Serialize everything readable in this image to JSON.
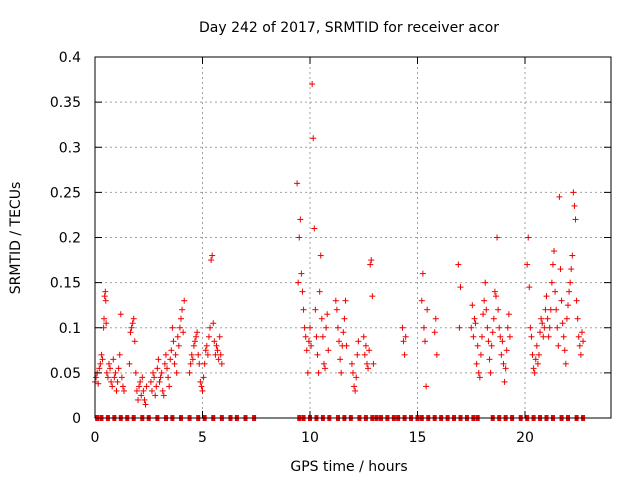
{
  "chart_data": {
    "type": "scatter",
    "title": "Day 242 of 2017, SRMTID for receiver acor",
    "xlabel": "GPS time / hours",
    "ylabel": "SRMTID / TECUs",
    "xlim": [
      0,
      24
    ],
    "ylim": [
      0,
      0.4
    ],
    "xticks": [
      0,
      5,
      10,
      15,
      20
    ],
    "yticks": [
      0,
      0.05,
      0.1,
      0.15,
      0.2,
      0.25,
      0.3,
      0.35,
      0.4
    ],
    "xtick_labels": [
      "0",
      "5",
      "10",
      "15",
      "20"
    ],
    "ytick_labels": [
      "0",
      "0.05",
      "0.1",
      "0.15",
      "0.2",
      "0.25",
      "0.3",
      "0.35",
      "0.4"
    ],
    "grid": true,
    "marker": "+",
    "color": "#ee0000",
    "series": [
      {
        "name": "SRMTID",
        "points": [
          [
            0.0,
            0.04
          ],
          [
            0.05,
            0.045
          ],
          [
            0.1,
            0.05
          ],
          [
            0.15,
            0.038
          ],
          [
            0.2,
            0.055
          ],
          [
            0.25,
            0.06
          ],
          [
            0.3,
            0.07
          ],
          [
            0.35,
            0.065
          ],
          [
            0.4,
            0.1
          ],
          [
            0.42,
            0.11
          ],
          [
            0.45,
            0.135
          ],
          [
            0.48,
            0.14
          ],
          [
            0.5,
            0.13
          ],
          [
            0.52,
            0.105
          ],
          [
            0.55,
            0.05
          ],
          [
            0.6,
            0.045
          ],
          [
            0.65,
            0.06
          ],
          [
            0.7,
            0.055
          ],
          [
            0.75,
            0.04
          ],
          [
            0.8,
            0.035
          ],
          [
            0.85,
            0.065
          ],
          [
            0.9,
            0.045
          ],
          [
            0.95,
            0.05
          ],
          [
            1.0,
            0.03
          ],
          [
            1.05,
            0.04
          ],
          [
            1.1,
            0.055
          ],
          [
            1.15,
            0.07
          ],
          [
            1.2,
            0.115
          ],
          [
            1.25,
            0.045
          ],
          [
            1.3,
            0.035
          ],
          [
            1.35,
            0.03
          ],
          [
            1.6,
            0.06
          ],
          [
            1.65,
            0.095
          ],
          [
            1.7,
            0.1
          ],
          [
            1.75,
            0.105
          ],
          [
            1.8,
            0.11
          ],
          [
            1.85,
            0.085
          ],
          [
            1.9,
            0.05
          ],
          [
            1.95,
            0.03
          ],
          [
            2.0,
            0.02
          ],
          [
            2.05,
            0.035
          ],
          [
            2.1,
            0.04
          ],
          [
            2.15,
            0.025
          ],
          [
            2.2,
            0.045
          ],
          [
            2.25,
            0.03
          ],
          [
            2.3,
            0.02
          ],
          [
            2.35,
            0.015
          ],
          [
            2.4,
            0.035
          ],
          [
            2.6,
            0.04
          ],
          [
            2.65,
            0.03
          ],
          [
            2.7,
            0.05
          ],
          [
            2.75,
            0.045
          ],
          [
            2.8,
            0.025
          ],
          [
            2.85,
            0.035
          ],
          [
            2.9,
            0.055
          ],
          [
            2.95,
            0.065
          ],
          [
            3.0,
            0.04
          ],
          [
            3.05,
            0.045
          ],
          [
            3.1,
            0.05
          ],
          [
            3.15,
            0.03
          ],
          [
            3.2,
            0.025
          ],
          [
            3.25,
            0.06
          ],
          [
            3.3,
            0.07
          ],
          [
            3.35,
            0.055
          ],
          [
            3.4,
            0.045
          ],
          [
            3.45,
            0.035
          ],
          [
            3.5,
            0.065
          ],
          [
            3.55,
            0.075
          ],
          [
            3.6,
            0.1
          ],
          [
            3.65,
            0.085
          ],
          [
            3.7,
            0.06
          ],
          [
            3.75,
            0.07
          ],
          [
            3.8,
            0.05
          ],
          [
            3.85,
            0.09
          ],
          [
            3.9,
            0.08
          ],
          [
            3.95,
            0.1
          ],
          [
            4.0,
            0.11
          ],
          [
            4.05,
            0.12
          ],
          [
            4.1,
            0.095
          ],
          [
            4.15,
            0.13
          ],
          [
            4.4,
            0.05
          ],
          [
            4.45,
            0.06
          ],
          [
            4.5,
            0.07
          ],
          [
            4.55,
            0.065
          ],
          [
            4.6,
            0.08
          ],
          [
            4.65,
            0.085
          ],
          [
            4.7,
            0.09
          ],
          [
            4.75,
            0.095
          ],
          [
            4.8,
            0.07
          ],
          [
            4.85,
            0.06
          ],
          [
            4.9,
            0.04
          ],
          [
            4.95,
            0.035
          ],
          [
            5.0,
            0.03
          ],
          [
            5.05,
            0.045
          ],
          [
            5.1,
            0.06
          ],
          [
            5.15,
            0.075
          ],
          [
            5.2,
            0.08
          ],
          [
            5.25,
            0.07
          ],
          [
            5.3,
            0.09
          ],
          [
            5.35,
            0.1
          ],
          [
            5.4,
            0.175
          ],
          [
            5.45,
            0.18
          ],
          [
            5.5,
            0.105
          ],
          [
            5.55,
            0.085
          ],
          [
            5.6,
            0.07
          ],
          [
            5.65,
            0.08
          ],
          [
            5.7,
            0.075
          ],
          [
            5.75,
            0.065
          ],
          [
            5.8,
            0.09
          ],
          [
            5.85,
            0.07
          ],
          [
            5.9,
            0.06
          ],
          [
            9.4,
            0.26
          ],
          [
            9.45,
            0.15
          ],
          [
            9.5,
            0.2
          ],
          [
            9.55,
            0.22
          ],
          [
            9.6,
            0.16
          ],
          [
            9.65,
            0.14
          ],
          [
            9.7,
            0.12
          ],
          [
            9.75,
            0.1
          ],
          [
            9.8,
            0.09
          ],
          [
            9.85,
            0.075
          ],
          [
            9.9,
            0.05
          ],
          [
            9.95,
            0.085
          ],
          [
            10.0,
            0.1
          ],
          [
            10.05,
            0.08
          ],
          [
            10.1,
            0.37
          ],
          [
            10.15,
            0.31
          ],
          [
            10.2,
            0.21
          ],
          [
            10.25,
            0.12
          ],
          [
            10.3,
            0.09
          ],
          [
            10.35,
            0.07
          ],
          [
            10.4,
            0.05
          ],
          [
            10.45,
            0.14
          ],
          [
            10.5,
            0.18
          ],
          [
            10.55,
            0.11
          ],
          [
            10.6,
            0.09
          ],
          [
            10.65,
            0.06
          ],
          [
            10.7,
            0.055
          ],
          [
            10.75,
            0.1
          ],
          [
            10.8,
            0.115
          ],
          [
            10.85,
            0.075
          ],
          [
            11.2,
            0.13
          ],
          [
            11.25,
            0.12
          ],
          [
            11.3,
            0.1
          ],
          [
            11.35,
            0.085
          ],
          [
            11.4,
            0.065
          ],
          [
            11.45,
            0.05
          ],
          [
            11.5,
            0.08
          ],
          [
            11.55,
            0.095
          ],
          [
            11.6,
            0.11
          ],
          [
            11.65,
            0.13
          ],
          [
            11.7,
            0.08
          ],
          [
            11.95,
            0.06
          ],
          [
            12.0,
            0.05
          ],
          [
            12.05,
            0.035
          ],
          [
            12.1,
            0.03
          ],
          [
            12.15,
            0.045
          ],
          [
            12.2,
            0.07
          ],
          [
            12.25,
            0.085
          ],
          [
            12.5,
            0.09
          ],
          [
            12.55,
            0.07
          ],
          [
            12.6,
            0.08
          ],
          [
            12.65,
            0.06
          ],
          [
            12.7,
            0.055
          ],
          [
            12.75,
            0.075
          ],
          [
            12.8,
            0.17
          ],
          [
            12.85,
            0.175
          ],
          [
            12.9,
            0.135
          ],
          [
            12.95,
            0.06
          ],
          [
            14.3,
            0.1
          ],
          [
            14.35,
            0.085
          ],
          [
            14.4,
            0.07
          ],
          [
            14.45,
            0.09
          ],
          [
            15.2,
            0.13
          ],
          [
            15.25,
            0.16
          ],
          [
            15.3,
            0.1
          ],
          [
            15.35,
            0.085
          ],
          [
            15.4,
            0.035
          ],
          [
            15.45,
            0.12
          ],
          [
            15.8,
            0.095
          ],
          [
            15.85,
            0.11
          ],
          [
            15.9,
            0.07
          ],
          [
            16.9,
            0.17
          ],
          [
            16.95,
            0.1
          ],
          [
            17.0,
            0.145
          ],
          [
            17.5,
            0.1
          ],
          [
            17.55,
            0.125
          ],
          [
            17.6,
            0.09
          ],
          [
            17.65,
            0.11
          ],
          [
            17.7,
            0.105
          ],
          [
            17.75,
            0.06
          ],
          [
            17.8,
            0.08
          ],
          [
            17.85,
            0.05
          ],
          [
            17.9,
            0.045
          ],
          [
            17.95,
            0.07
          ],
          [
            18.0,
            0.09
          ],
          [
            18.05,
            0.115
          ],
          [
            18.1,
            0.13
          ],
          [
            18.15,
            0.15
          ],
          [
            18.2,
            0.12
          ],
          [
            18.25,
            0.1
          ],
          [
            18.3,
            0.085
          ],
          [
            18.35,
            0.065
          ],
          [
            18.4,
            0.05
          ],
          [
            18.45,
            0.08
          ],
          [
            18.5,
            0.095
          ],
          [
            18.55,
            0.11
          ],
          [
            18.6,
            0.14
          ],
          [
            18.65,
            0.135
          ],
          [
            18.7,
            0.2
          ],
          [
            18.75,
            0.12
          ],
          [
            18.8,
            0.1
          ],
          [
            18.85,
            0.09
          ],
          [
            18.9,
            0.07
          ],
          [
            18.95,
            0.085
          ],
          [
            19.0,
            0.06
          ],
          [
            19.05,
            0.04
          ],
          [
            19.1,
            0.055
          ],
          [
            19.15,
            0.075
          ],
          [
            19.2,
            0.1
          ],
          [
            19.25,
            0.115
          ],
          [
            19.3,
            0.09
          ],
          [
            20.1,
            0.17
          ],
          [
            20.15,
            0.2
          ],
          [
            20.2,
            0.145
          ],
          [
            20.25,
            0.1
          ],
          [
            20.3,
            0.09
          ],
          [
            20.35,
            0.07
          ],
          [
            20.4,
            0.055
          ],
          [
            20.45,
            0.05
          ],
          [
            20.5,
            0.065
          ],
          [
            20.55,
            0.08
          ],
          [
            20.6,
            0.06
          ],
          [
            20.65,
            0.07
          ],
          [
            20.7,
            0.095
          ],
          [
            20.75,
            0.11
          ],
          [
            20.8,
            0.105
          ],
          [
            20.85,
            0.09
          ],
          [
            20.9,
            0.1
          ],
          [
            20.95,
            0.12
          ],
          [
            21.0,
            0.135
          ],
          [
            21.05,
            0.11
          ],
          [
            21.1,
            0.09
          ],
          [
            21.15,
            0.1
          ],
          [
            21.2,
            0.12
          ],
          [
            21.25,
            0.15
          ],
          [
            21.3,
            0.17
          ],
          [
            21.35,
            0.185
          ],
          [
            21.4,
            0.14
          ],
          [
            21.45,
            0.12
          ],
          [
            21.5,
            0.1
          ],
          [
            21.55,
            0.08
          ],
          [
            21.6,
            0.245
          ],
          [
            21.65,
            0.165
          ],
          [
            21.7,
            0.13
          ],
          [
            21.75,
            0.105
          ],
          [
            21.8,
            0.09
          ],
          [
            21.85,
            0.075
          ],
          [
            21.9,
            0.06
          ],
          [
            21.95,
            0.11
          ],
          [
            22.0,
            0.125
          ],
          [
            22.05,
            0.14
          ],
          [
            22.1,
            0.15
          ],
          [
            22.15,
            0.165
          ],
          [
            22.2,
            0.18
          ],
          [
            22.25,
            0.25
          ],
          [
            22.3,
            0.235
          ],
          [
            22.35,
            0.22
          ],
          [
            22.4,
            0.13
          ],
          [
            22.45,
            0.11
          ],
          [
            22.5,
            0.09
          ],
          [
            22.55,
            0.08
          ],
          [
            22.6,
            0.07
          ],
          [
            22.65,
            0.095
          ],
          [
            22.7,
            0.085
          ]
        ],
        "zero_points": [
          0.1,
          0.3,
          0.6,
          0.9,
          1.2,
          1.5,
          1.8,
          2.2,
          2.5,
          2.9,
          3.3,
          3.6,
          4.0,
          4.4,
          4.8,
          5.1,
          5.5,
          5.9,
          6.3,
          6.6,
          7.0,
          7.4,
          9.5,
          9.7,
          10.0,
          10.3,
          10.6,
          10.9,
          11.3,
          11.6,
          11.9,
          12.3,
          12.6,
          12.9,
          13.1,
          13.3,
          13.6,
          13.9,
          14.1,
          14.4,
          14.7,
          15.0,
          15.2,
          15.5,
          15.8,
          16.1,
          16.4,
          16.7,
          17.0,
          17.3,
          17.6,
          17.8,
          18.5,
          18.8,
          19.1,
          19.4,
          19.8,
          20.1,
          20.4,
          20.7,
          21.0,
          21.3,
          21.7,
          22.0,
          22.4,
          22.7
        ]
      }
    ]
  }
}
